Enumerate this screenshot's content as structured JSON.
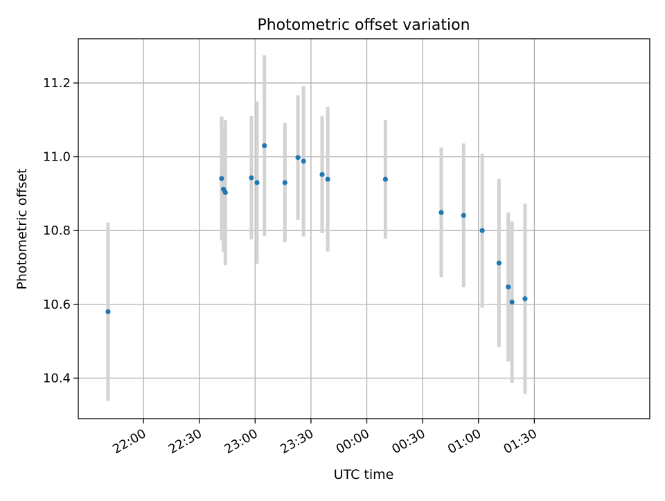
{
  "chart_data": {
    "type": "scatter",
    "title": "Photometric offset variation",
    "xlabel": "UTC time",
    "ylabel": "Photometric offset",
    "grid": true,
    "xlim_minutes_from_2130": [
      -5,
      302
    ],
    "xticks": [
      "22:00",
      "22:30",
      "23:00",
      "23:30",
      "00:00",
      "00:30",
      "01:00",
      "01:30"
    ],
    "ylim": [
      10.29,
      11.32
    ],
    "yticks": [
      "10.4",
      "10.6",
      "10.8",
      "11.0",
      "11.2"
    ],
    "colors": {
      "point": "#1f77b4",
      "errorbar": "#d3d3d3",
      "grid": "#b0b0b0"
    },
    "points": [
      {
        "t": "21:41",
        "y": 10.58,
        "err": 0.242
      },
      {
        "t": "22:42",
        "y": 10.941,
        "err": 0.168
      },
      {
        "t": "22:43",
        "y": 10.912,
        "err": 0.17
      },
      {
        "t": "22:44",
        "y": 10.903,
        "err": 0.197
      },
      {
        "t": "22:58",
        "y": 10.943,
        "err": 0.167
      },
      {
        "t": "23:01",
        "y": 10.93,
        "err": 0.22
      },
      {
        "t": "23:05",
        "y": 11.03,
        "err": 0.245
      },
      {
        "t": "23:16",
        "y": 10.93,
        "err": 0.162
      },
      {
        "t": "23:23",
        "y": 10.998,
        "err": 0.169
      },
      {
        "t": "23:26",
        "y": 10.988,
        "err": 0.204
      },
      {
        "t": "23:36",
        "y": 10.952,
        "err": 0.159
      },
      {
        "t": "23:39",
        "y": 10.939,
        "err": 0.196
      },
      {
        "t": "00:10",
        "y": 10.939,
        "err": 0.161
      },
      {
        "t": "00:40",
        "y": 10.849,
        "err": 0.176
      },
      {
        "t": "00:52",
        "y": 10.841,
        "err": 0.195
      },
      {
        "t": "01:02",
        "y": 10.8,
        "err": 0.209
      },
      {
        "t": "01:11",
        "y": 10.712,
        "err": 0.228
      },
      {
        "t": "01:16",
        "y": 10.647,
        "err": 0.202
      },
      {
        "t": "01:18",
        "y": 10.606,
        "err": 0.219
      },
      {
        "t": "01:25",
        "y": 10.615,
        "err": 0.258
      }
    ]
  }
}
